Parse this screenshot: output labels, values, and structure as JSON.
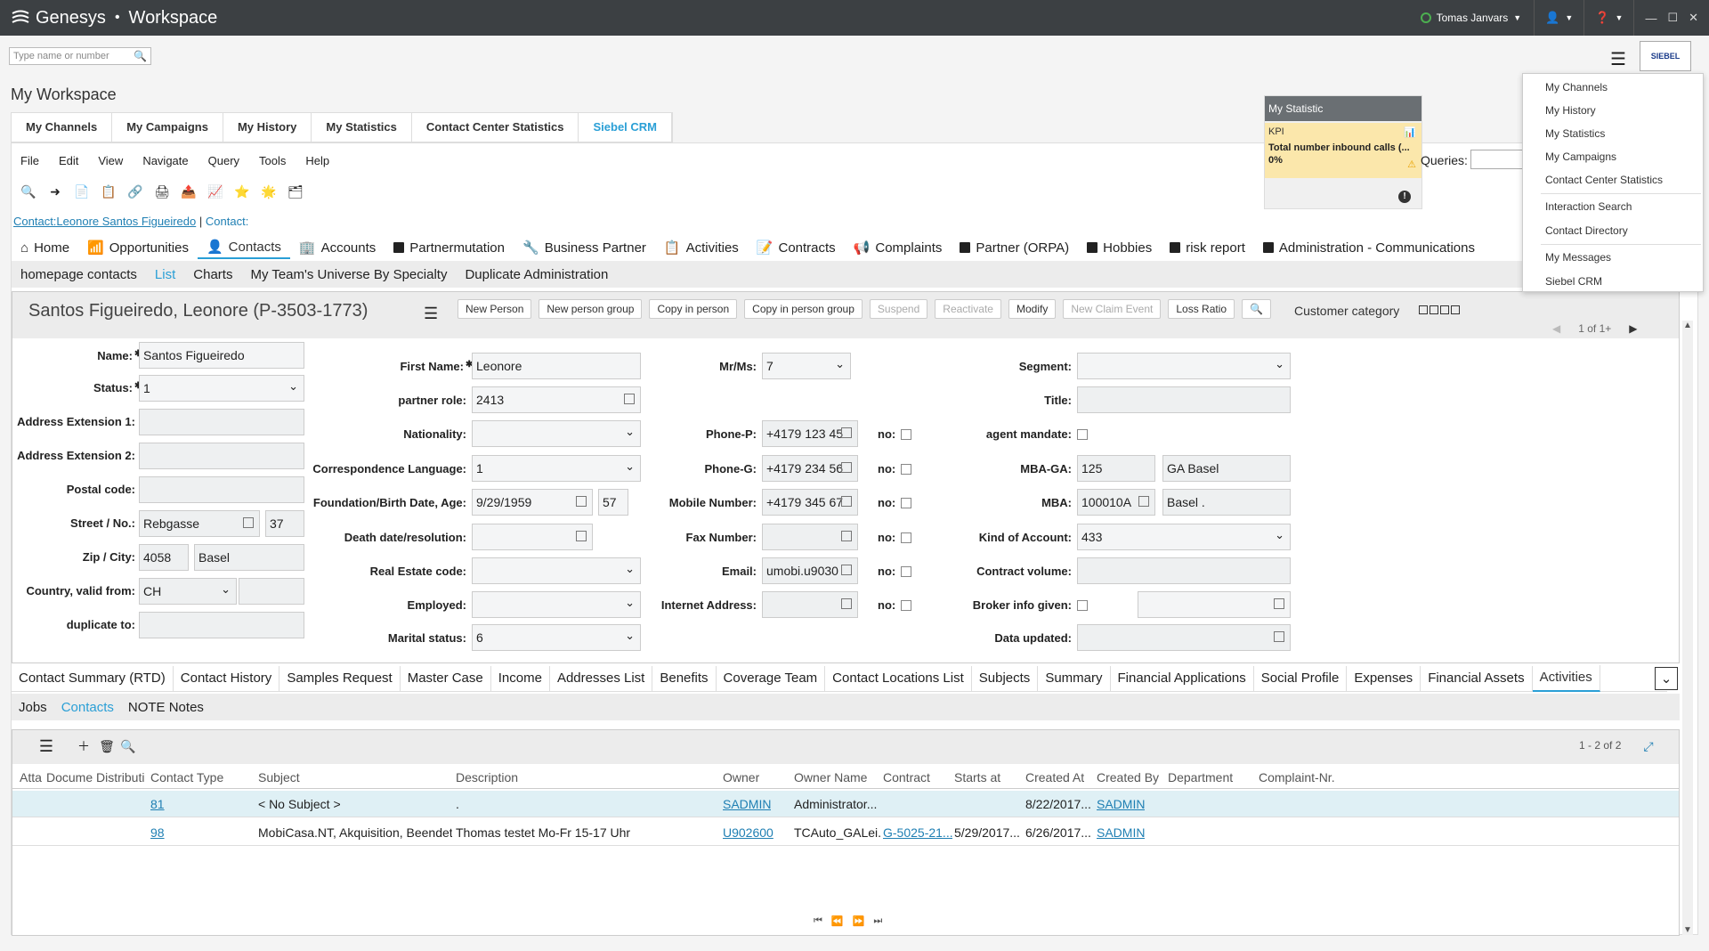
{
  "app": {
    "brand": "Genesys",
    "product": "Workspace"
  },
  "titlebar": {
    "user": "Tomas Janvars"
  },
  "search": {
    "placeholder": "Type name or number"
  },
  "siebel_logo": "SIEBEL",
  "workspace_title": "My Workspace",
  "main_tabs": [
    "My Channels",
    "My Campaigns",
    "My History",
    "My Statistics",
    "Contact Center Statistics",
    "Siebel CRM"
  ],
  "menubar": [
    "File",
    "Edit",
    "View",
    "Navigate",
    "Query",
    "Tools",
    "Help"
  ],
  "breadcrumb": {
    "link": "Contact:Leonore Santos Figueiredo",
    "sep": "|",
    "current": "Contact:"
  },
  "screen_tabs": [
    "Home",
    "Opportunities",
    "Contacts",
    "Accounts",
    "Partnermutation",
    "Business Partner",
    "Activities",
    "Contracts",
    "Complaints",
    "Partner (ORPA)",
    "Hobbies",
    "risk report",
    "Administration - Communications"
  ],
  "view_tabs": [
    "homepage contacts",
    "List",
    "Charts",
    "My Team's Universe By Specialty",
    "Duplicate Administration"
  ],
  "form": {
    "title": "Santos Figueiredo, Leonore (P-3503-1773)",
    "buttons": [
      "New Person",
      "New person group",
      "Copy in person",
      "Copy in person group",
      "Suspend",
      "Reactivate",
      "Modify",
      "New Claim Event",
      "Loss Ratio"
    ],
    "customer_category": "Customer category",
    "pager": "1 of 1+",
    "labels": {
      "name": "Name:",
      "status": "Status:",
      "addr_ext1": "Address Extension 1:",
      "addr_ext2": "Address Extension 2:",
      "postal": "Postal code:",
      "street": "Street / No.:",
      "zip": "Zip / City:",
      "country": "Country, valid from:",
      "duplicate": "duplicate to:",
      "first_name": "First Name:",
      "partner_role": "partner role:",
      "nationality": "Nationality:",
      "corr_lang": "Correspondence Language:",
      "birth": "Foundation/Birth Date, Age:",
      "death": "Death date/resolution:",
      "real_estate": "Real Estate code:",
      "employed": "Employed:",
      "marital": "Marital status:",
      "mrms": "Mr/Ms:",
      "phone_p": "Phone-P:",
      "phone_g": "Phone-G:",
      "mobile": "Mobile Number:",
      "fax": "Fax Number:",
      "email": "Email:",
      "internet": "Internet Address:",
      "no": "no:",
      "segment": "Segment:",
      "title": "Title:",
      "agent_mandate": "agent mandate:",
      "mba_ga": "MBA-GA:",
      "mba": "MBA:",
      "kind_account": "Kind of Account:",
      "contract_volume": "Contract volume:",
      "broker_info": "Broker info given:",
      "data_updated": "Data updated:"
    },
    "values": {
      "name": "Santos Figueiredo",
      "status": "1",
      "street": "Rebgasse",
      "street_no": "37",
      "zip": "4058",
      "city": "Basel",
      "country": "CH",
      "first_name": "Leonore",
      "partner_role": "2413",
      "corr_lang": "1",
      "birth": "9/29/1959",
      "age": "57",
      "marital": "6",
      "mrms": "7",
      "phone_p": "+4179 123 45",
      "phone_g": "+4179 234 56",
      "mobile": "+4179 345 67",
      "email": "umobi.u9030",
      "mba_ga": "125",
      "mba_ga_name": "GA Basel",
      "mba": "100010A",
      "mba_name": "Basel .",
      "kind_account": "433"
    }
  },
  "lower_tabs": [
    "Contact Summary (RTD)",
    "Contact History",
    "Samples Request",
    "Master Case",
    "Income",
    "Addresses List",
    "Benefits",
    "Coverage Team",
    "Contact Locations List",
    "Subjects",
    "Summary",
    "Financial Applications",
    "Social Profile",
    "Expenses",
    "Financial Assets",
    "Activities"
  ],
  "sub_tabs": [
    "Jobs",
    "Contacts",
    "NOTE Notes"
  ],
  "list": {
    "count": "1 - 2 of 2",
    "columns": [
      "Atta",
      "Docume",
      "Distributi",
      "Contact Type",
      "Subject",
      "Description",
      "Owner",
      "Owner Name",
      "Contract",
      "Starts at",
      "Created At",
      "Created By",
      "Department",
      "Complaint-Nr."
    ],
    "rows": [
      {
        "contact_type": "81",
        "subject": "< No Subject >",
        "description": ".",
        "owner": "SADMIN",
        "owner_name": "Administrator...",
        "contract": "",
        "starts": "",
        "created_at": "8/22/2017...",
        "created_by": "SADMIN"
      },
      {
        "contact_type": "98",
        "subject": "MobiCasa.NT, Akquisition, Beendet",
        "description": "Thomas testet Mo-Fr 15-17 Uhr",
        "owner": "U902600",
        "owner_name": "TCAuto_GALei...",
        "contract": "G-5025-21...",
        "starts": "5/29/2017...",
        "created_at": "6/26/2017...",
        "created_by": "SADMIN"
      }
    ]
  },
  "statistic": {
    "title": "My Statistic",
    "kpi": "KPI",
    "label": "Total number inbound calls (...",
    "value": "0%"
  },
  "queries_label": "Queries:",
  "dropdown": {
    "group1": [
      "My Channels",
      "My History",
      "My Statistics",
      "My Campaigns",
      "Contact Center Statistics"
    ],
    "group2": [
      "Interaction Search",
      "Contact Directory"
    ],
    "group3": [
      "My Messages",
      "Siebel CRM"
    ]
  },
  "colors": {
    "titlebar": "#3c4043",
    "accent": "#2a9fd6",
    "link": "#1f7fb3",
    "kpi_bg": "#fbe7ab"
  }
}
